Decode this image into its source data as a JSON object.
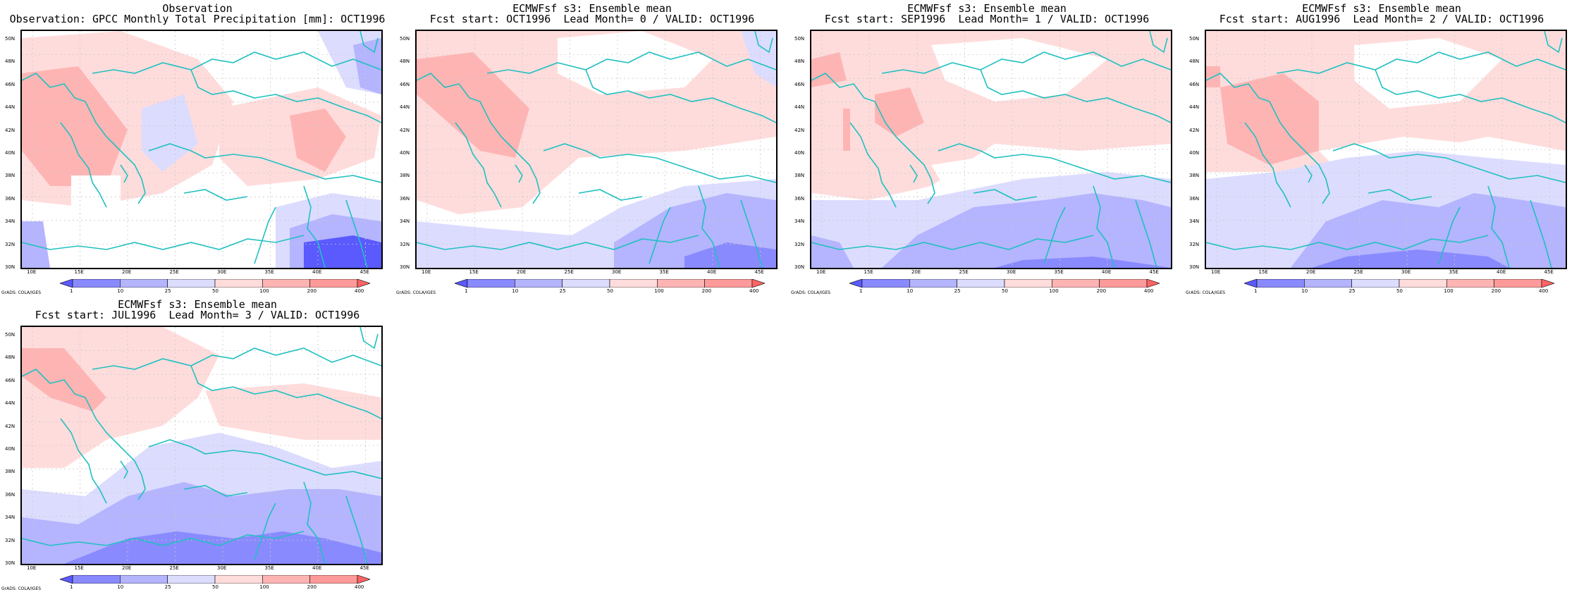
{
  "panels": [
    {
      "title1": "Observation",
      "title2": "Observation: GPCC Monthly Total Precipitation [mm]: OCT1996"
    },
    {
      "title1": "ECMWFsf s3: Ensemble mean",
      "title2": "Fcst start: OCT1996  Lead Month= 0 / VALID: OCT1996"
    },
    {
      "title1": "ECMWFsf s3: Ensemble mean",
      "title2": "Fcst start: SEP1996  Lead Month= 1 / VALID: OCT1996"
    },
    {
      "title1": "ECMWFsf s3: Ensemble mean",
      "title2": "Fcst start: AUG1996  Lead Month= 2 / VALID: OCT1996"
    },
    {
      "title1": "ECMWFsf s3: Ensemble mean",
      "title2": "Fcst start: JUL1996  Lead Month= 3 / VALID: OCT1996"
    }
  ],
  "y_ticks": [
    "50N",
    "48N",
    "46N",
    "44N",
    "42N",
    "40N",
    "38N",
    "36N",
    "34N",
    "32N",
    "30N"
  ],
  "x_ticks": [
    "10E",
    "15E",
    "20E",
    "25E",
    "30E",
    "35E",
    "40E",
    "45E"
  ],
  "colorbar_labels": [
    "1",
    "10",
    "25",
    "50",
    "100",
    "200",
    "400"
  ],
  "colorbar_colors": [
    "#5a5aff",
    "#8a8aff",
    "#b4b4ff",
    "#dcdcff",
    "#ffdcdc",
    "#ffb4b4",
    "#ff9a9a",
    "#ff6464"
  ],
  "credit": "GrADS: COLA/IGES",
  "colors": {
    "coast": "#20c0c0",
    "grid": "#c8c8c8"
  }
}
